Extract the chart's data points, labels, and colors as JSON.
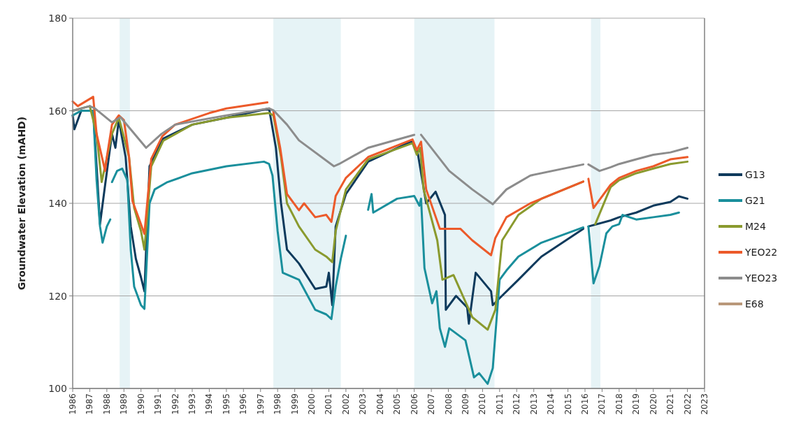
{
  "chart_data": {
    "type": "line",
    "ylabel": "Groundwater Elevation (mAHD)",
    "xlim": [
      1986,
      2023
    ],
    "xticks": [
      1986,
      1987,
      1988,
      1989,
      1990,
      1991,
      1992,
      1993,
      1994,
      1995,
      1996,
      1997,
      1998,
      1999,
      2000,
      2001,
      2002,
      2003,
      2004,
      2005,
      2006,
      2007,
      2008,
      2009,
      2010,
      2011,
      2012,
      2013,
      2014,
      2015,
      2016,
      2017,
      2018,
      2019,
      2020,
      2021,
      2022,
      2023
    ],
    "ylim": [
      100,
      180
    ],
    "yticks": [
      100,
      120,
      140,
      160,
      180
    ],
    "grid": "y",
    "legend": "right",
    "line_style": "solid",
    "marker": "none",
    "bands": [
      {
        "axis": "x",
        "from": 1988.75,
        "to": 1989.35,
        "color": "#e6f3f6"
      },
      {
        "axis": "x",
        "from": 1997.75,
        "to": 2001.7,
        "color": "#e6f3f6"
      },
      {
        "axis": "x",
        "from": 2006.0,
        "to": 2010.7,
        "color": "#e6f3f6"
      },
      {
        "axis": "x",
        "from": 2016.35,
        "to": 2016.9,
        "color": "#e6f3f6"
      }
    ],
    "series": [
      {
        "name": "G13",
        "color": "#0e3a5c",
        "x": [
          1986,
          1986.1,
          1986.5,
          1987.2,
          1987.4,
          1987.6,
          1987.9,
          1988.3,
          1988.5,
          1988.7,
          1989.1,
          1989.4,
          1989.7,
          1990.0,
          1990.2,
          1990.5,
          1991.3,
          1993,
          1995,
          1997.5,
          1997.9,
          1998.2,
          1998.55,
          1999.25,
          2000.2,
          2000.85,
          2001.0,
          2001.2,
          2001.4,
          2002,
          2003.3,
          2005.9,
          2006.2,
          2006.7,
          2007.25,
          2007.8,
          2007.85,
          2008.45,
          2009.1,
          2009.2,
          2009.6,
          2010.5,
          2010.6,
          2011.0,
          2012.1,
          2013.45,
          2015.9,
          2016.05,
          2016.2,
          2017.5,
          2018,
          2019,
          2020,
          2021,
          2021.5,
          2022
        ],
        "values": [
          159,
          156,
          160,
          160,
          148,
          135.5,
          144,
          155,
          152,
          158,
          150,
          135,
          128,
          124,
          121,
          148,
          154,
          157,
          158.5,
          160.5,
          152,
          140,
          130,
          127,
          121.5,
          122,
          125,
          118,
          135,
          142,
          149,
          153.5,
          151,
          140,
          142.5,
          137.5,
          117,
          120,
          117.5,
          114,
          125,
          121,
          118,
          119.5,
          123.5,
          128.5,
          134.5,
          null,
          135,
          136.3,
          137,
          138,
          139.5,
          140.3,
          141.5,
          141
        ]
      },
      {
        "name": "G21",
        "color": "#1a8f9c",
        "x": [
          1986,
          1986.5,
          1987.2,
          1987.4,
          1987.6,
          1987.75,
          1988.0,
          1988.2,
          1988.25,
          1988.3,
          1988.6,
          1988.9,
          1989.2,
          1989.4,
          1989.6,
          1990.0,
          1990.2,
          1990.5,
          1990.8,
          1991.5,
          1993,
          1995,
          1997.2,
          1997.5,
          1997.7,
          1998.0,
          1998.3,
          1999.25,
          2000.2,
          2000.85,
          2001.15,
          2001.4,
          2001.7,
          2002,
          2002.9,
          2003.3,
          2003.5,
          2003.6,
          2005,
          2006.0,
          2006.3,
          2006.4,
          2006.6,
          2007.05,
          2007.3,
          2007.5,
          2007.8,
          2008.05,
          2009.0,
          2009.5,
          2009.8,
          2010.3,
          2010.6,
          2011.0,
          2011.4,
          2012.1,
          2013.45,
          2015.9,
          2016.05,
          2016.2,
          2016.5,
          2016.85,
          2017.25,
          2017.6,
          2018,
          2018.2,
          2019,
          2020,
          2021,
          2021.5
        ],
        "values": [
          159,
          160,
          160,
          145,
          135,
          131.5,
          135,
          136.5,
          null,
          144.6,
          147,
          147.5,
          145,
          130,
          122,
          118,
          117.2,
          140,
          143,
          144.5,
          146.5,
          148,
          149,
          148.5,
          146,
          134,
          125,
          123.5,
          117,
          116,
          115,
          122,
          128,
          133,
          null,
          138.6,
          142,
          138,
          141,
          141.6,
          139.5,
          141,
          126,
          118.4,
          121,
          113,
          109,
          113,
          110.4,
          102.4,
          103.3,
          101,
          104.4,
          123.5,
          125.5,
          128.5,
          131.5,
          134.8,
          null,
          135,
          122.7,
          126.5,
          133.5,
          135,
          135.5,
          137.5,
          136.5,
          137,
          137.5,
          138
        ]
      },
      {
        "name": "M24",
        "color": "#8a9a2e",
        "x": [
          1986,
          1987,
          1987.4,
          1987.7,
          1988.3,
          1988.7,
          1989.3,
          1989.6,
          1990.0,
          1990.2,
          1990.6,
          1991.3,
          1993,
          1995,
          1997.5,
          1997.75,
          1998.2,
          1998.55,
          1999.25,
          2000.2,
          2000.85,
          2001.2,
          2001.4,
          2002.0,
          2003.3,
          2005.9,
          2006.15,
          2006.35,
          2006.55,
          2007.35,
          2007.65,
          2008.3,
          2009.4,
          2010.3,
          2010.75,
          2011.15,
          2012.1,
          2013.45,
          2015.9,
          2016.2,
          2016.6,
          2017.5,
          2018,
          2019,
          2020,
          2021,
          2022
        ],
        "values": [
          160,
          161,
          155,
          144.6,
          155,
          158.5,
          150,
          139,
          134,
          130,
          148,
          153.5,
          157,
          158.5,
          159.5,
          159,
          150,
          140,
          135,
          130,
          128.5,
          127.3,
          134,
          143,
          149.5,
          153,
          150.5,
          152,
          143,
          132,
          123.5,
          124.5,
          115.4,
          112.7,
          117,
          132,
          137.5,
          141,
          144.7,
          null,
          135.5,
          143.5,
          145,
          146.5,
          147.5,
          148.5,
          149
        ]
      },
      {
        "name": "YEO22",
        "color": "#ec5a2a",
        "x": [
          1986,
          1986.3,
          1987.2,
          1987.4,
          1987.9,
          1988.0,
          1988.3,
          1988.7,
          1989.0,
          1989.3,
          1989.5,
          1989.9,
          1990.2,
          1990.6,
          1991.25,
          1992,
          1994,
          1995,
          1997.4,
          1997.6,
          1997.75,
          1998.15,
          1998.55,
          1999.25,
          1999.55,
          2000.2,
          2000.85,
          2001.15,
          2001.4,
          2002.0,
          2003.3,
          2005.9,
          2006.15,
          2006.4,
          2006.7,
          2007.5,
          2008.7,
          2009.4,
          2010.5,
          2010.75,
          2011.4,
          2012.8,
          2015.9,
          2016.05,
          2016.2,
          2016.5,
          2017.5,
          2018,
          2019,
          2020,
          2021,
          2022
        ],
        "values": [
          162,
          161,
          163,
          155,
          147,
          150,
          157,
          159,
          158,
          150,
          140.5,
          136.5,
          133.4,
          149.6,
          154.5,
          157,
          159.5,
          160.5,
          161.8,
          null,
          159.8,
          152,
          142,
          138.5,
          140,
          137,
          137.5,
          136,
          141.6,
          145.5,
          150,
          153.8,
          151.5,
          153.3,
          143,
          134.5,
          134.5,
          132,
          128.8,
          132.5,
          137,
          140,
          144.7,
          null,
          145.3,
          139,
          144,
          145.5,
          147,
          148,
          149.5,
          150
        ]
      },
      {
        "name": "YEO23",
        "color": "#8c8c8c",
        "x": [
          1986,
          1987,
          1987.3,
          1988.3,
          1988.8,
          1990.3,
          1991.2,
          1992,
          1995,
          1997.5,
          1997.75,
          1998.55,
          1999.25,
          2001.3,
          2001.6,
          2003.3,
          2006.0,
          2006.2,
          2006.4,
          2008.05,
          2009.4,
          2010.6,
          2011.4,
          2012.8,
          2015.9,
          2016.05,
          2016.2,
          2016.85,
          2017.5,
          2018,
          2019,
          2020,
          2021,
          2022
        ],
        "values": [
          160,
          161,
          160.5,
          157.5,
          158.6,
          152,
          155,
          157,
          159,
          160.5,
          160.1,
          157,
          153.6,
          148,
          148.5,
          152,
          154.8,
          null,
          154.8,
          147,
          143,
          139.8,
          143,
          146,
          148.4,
          null,
          148.4,
          147,
          147.8,
          148.5,
          149.5,
          150.5,
          151,
          152
        ]
      },
      {
        "name": "E68",
        "color": "#b9987a"
      }
    ]
  }
}
